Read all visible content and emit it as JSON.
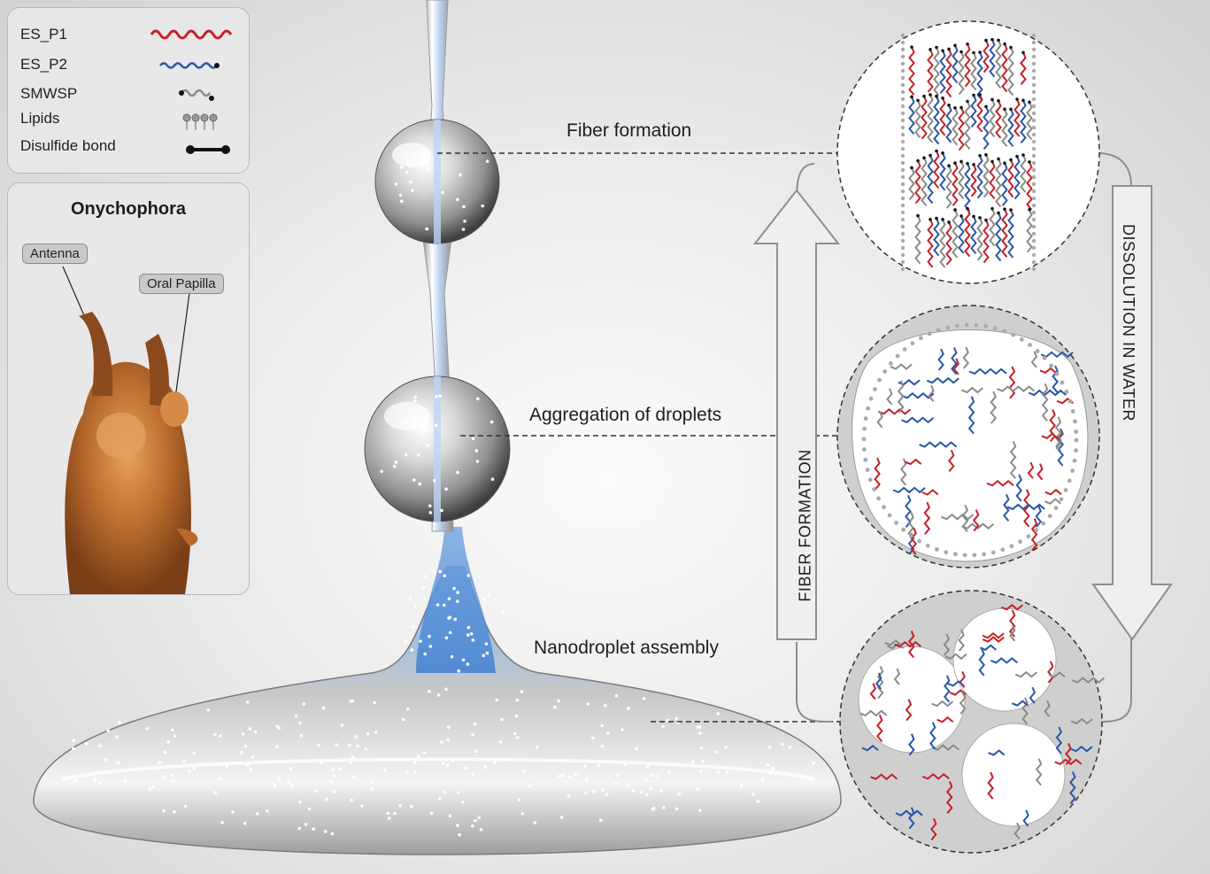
{
  "legend": {
    "items": [
      {
        "label": "ES_P1",
        "color": "#c42126"
      },
      {
        "label": "ES_P2",
        "color": "#2a56a8"
      },
      {
        "label": "SMWSP",
        "color": "#8a8a8a"
      },
      {
        "label": "Lipids",
        "color": "#8a8a8a"
      },
      {
        "label": "Disulfide bond",
        "color": "#111111"
      }
    ]
  },
  "specimen": {
    "title": "Onychophora",
    "labels": {
      "antenna": "Antenna",
      "oral_papilla": "Oral Papilla"
    }
  },
  "stages": {
    "fiber": "Fiber formation",
    "aggregation": "Aggregation of droplets",
    "nanodroplet": "Nanodroplet assembly"
  },
  "arrows": {
    "up": "FIBER FORMATION",
    "down": "DISSOLUTION IN WATER"
  },
  "colors": {
    "red": "#c42126",
    "blue": "#2a56a8",
    "gray": "#8a8a8a",
    "black": "#111111"
  }
}
